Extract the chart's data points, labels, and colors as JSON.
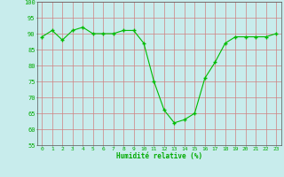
{
  "x": [
    0,
    1,
    2,
    3,
    4,
    5,
    6,
    7,
    8,
    9,
    10,
    11,
    12,
    13,
    14,
    15,
    16,
    17,
    18,
    19,
    20,
    21,
    22,
    23
  ],
  "y": [
    89,
    91,
    88,
    91,
    92,
    90,
    90,
    90,
    91,
    91,
    87,
    75,
    66,
    62,
    63,
    65,
    76,
    81,
    87,
    89,
    89,
    89,
    89,
    90
  ],
  "line_color": "#00bb00",
  "marker": "+",
  "bg_color": "#c8ecec",
  "grid_color": "#d08080",
  "xlabel": "Humidité relative (%)",
  "xlabel_color": "#00aa00",
  "tick_color": "#00aa00",
  "ylim": [
    55,
    100
  ],
  "yticks": [
    55,
    60,
    65,
    70,
    75,
    80,
    85,
    90,
    95,
    100
  ],
  "xlim": [
    -0.5,
    23.5
  ],
  "figsize": [
    3.2,
    2.0
  ],
  "dpi": 100
}
